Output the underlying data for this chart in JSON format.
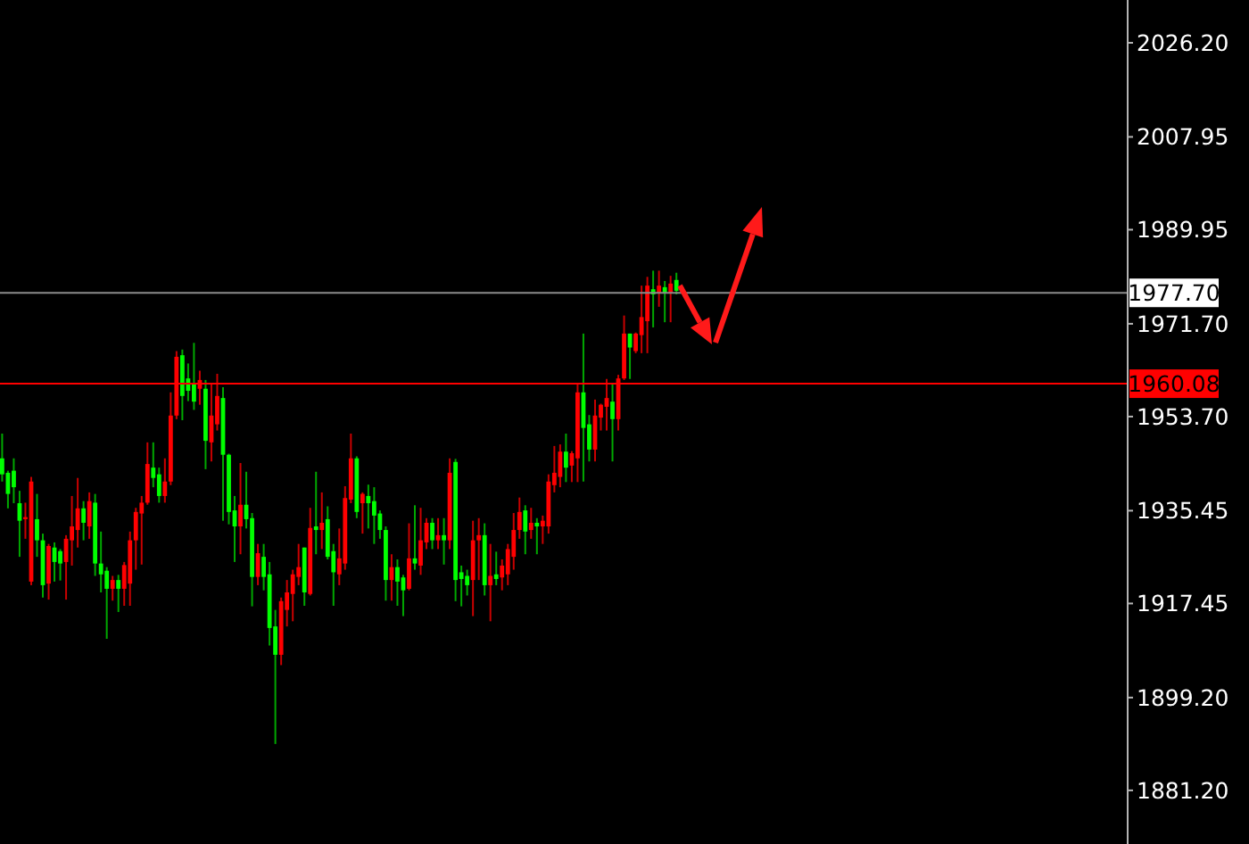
{
  "chart_data": {
    "type": "candlestick",
    "categories": [
      null,
      null,
      null,
      null,
      null,
      null,
      null,
      null,
      null,
      null,
      null,
      null,
      null,
      null,
      null,
      null,
      null,
      null,
      null,
      null,
      null,
      null,
      null,
      null,
      null,
      null,
      null,
      null,
      null,
      null,
      null,
      null,
      null,
      null,
      null,
      null,
      null,
      null,
      null,
      null,
      null,
      null,
      null,
      null,
      null,
      null,
      null,
      null,
      null,
      null,
      null,
      null,
      null,
      null,
      null,
      null,
      null,
      null,
      null,
      null,
      null,
      null,
      null,
      null,
      null,
      null,
      null,
      null,
      null,
      null,
      null,
      null,
      null,
      null,
      null,
      null,
      null,
      null,
      null,
      null,
      null,
      null,
      null,
      null,
      null,
      null,
      null,
      null,
      null,
      null,
      null,
      null,
      null,
      null,
      null,
      null,
      null,
      null,
      null,
      null,
      null,
      null,
      null,
      null,
      null,
      null,
      null,
      null,
      null,
      null,
      null,
      null,
      null,
      null,
      null,
      null,
      null,
      null,
      null,
      null,
      null,
      null,
      null,
      null,
      null,
      null,
      null,
      null,
      null,
      null,
      null,
      null,
      null,
      null,
      null,
      null,
      null,
      null,
      null,
      null,
      null,
      null,
      null,
      null,
      null,
      null,
      null,
      null,
      null,
      null,
      null,
      null,
      null,
      null,
      null,
      null,
      null,
      null,
      null,
      null,
      null,
      null,
      null,
      null,
      null,
      null,
      null,
      null,
      null,
      null,
      null,
      null,
      null,
      null,
      null,
      null,
      null,
      null,
      null,
      null,
      null,
      null,
      null,
      null,
      null,
      null,
      null,
      null,
      null,
      null,
      null,
      null,
      null,
      null
    ],
    "ohlc": [
      [
        1945.6,
        1950.4,
        1941.1,
        1942.5
      ],
      [
        1942.8,
        1943.2,
        1935.9,
        1938.7
      ],
      [
        1943.2,
        1945.6,
        1936.9,
        1940.0
      ],
      [
        1936.9,
        1939.3,
        1926.5,
        1933.5
      ],
      [
        1933.8,
        1937.0,
        1930.0,
        1934.2
      ],
      [
        1921.7,
        1942.0,
        1921.0,
        1941.1
      ],
      [
        1933.8,
        1938.7,
        1926.5,
        1929.7
      ],
      [
        1929.7,
        1931.0,
        1918.6,
        1921.0
      ],
      [
        1921.3,
        1929.0,
        1918.2,
        1928.6
      ],
      [
        1928.3,
        1929.3,
        1921.7,
        1925.5
      ],
      [
        1927.6,
        1928.0,
        1921.9,
        1925.2
      ],
      [
        1925.5,
        1930.7,
        1918.2,
        1930.0
      ],
      [
        1929.7,
        1938.3,
        1924.8,
        1932.4
      ],
      [
        1931.7,
        1941.8,
        1928.3,
        1935.9
      ],
      [
        1935.9,
        1937.3,
        1929.7,
        1933.1
      ],
      [
        1932.4,
        1939.0,
        1930.0,
        1937.3
      ],
      [
        1937.0,
        1938.7,
        1922.8,
        1925.2
      ],
      [
        1925.2,
        1931.4,
        1919.6,
        1923.1
      ],
      [
        1923.8,
        1924.5,
        1910.6,
        1920.3
      ],
      [
        1920.3,
        1922.8,
        1918.0,
        1922.0
      ],
      [
        1922.0,
        1923.0,
        1915.8,
        1920.3
      ],
      [
        1920.3,
        1925.5,
        1917.0,
        1924.9
      ],
      [
        1921.3,
        1931.4,
        1917.0,
        1929.7
      ],
      [
        1929.7,
        1936.0,
        1924.0,
        1935.2
      ],
      [
        1934.9,
        1938.3,
        1925.0,
        1937.0
      ],
      [
        1937.0,
        1948.7,
        1936.6,
        1944.5
      ],
      [
        1943.8,
        1948.7,
        1940.0,
        1941.8
      ],
      [
        1942.5,
        1943.8,
        1937.0,
        1938.3
      ],
      [
        1938.3,
        1945.6,
        1937.0,
        1941.1
      ],
      [
        1941.1,
        1958.4,
        1940.4,
        1953.9
      ],
      [
        1953.9,
        1966.4,
        1953.2,
        1965.3
      ],
      [
        1965.6,
        1966.7,
        1953.0,
        1957.7
      ],
      [
        1961.1,
        1964.0,
        1956.7,
        1958.7
      ],
      [
        1960.1,
        1968.0,
        1955.0,
        1956.6
      ],
      [
        1959.1,
        1962.6,
        1956.0,
        1960.8
      ],
      [
        1959.1,
        1960.8,
        1943.5,
        1949.0
      ],
      [
        1948.7,
        1960.0,
        1945.0,
        1953.9
      ],
      [
        1952.2,
        1962.0,
        1951.0,
        1957.7
      ],
      [
        1957.3,
        1959.4,
        1933.5,
        1946.3
      ],
      [
        1946.3,
        1946.5,
        1932.8,
        1935.2
      ],
      [
        1935.5,
        1938.3,
        1925.5,
        1932.4
      ],
      [
        1932.4,
        1944.7,
        1927.0,
        1936.6
      ],
      [
        1936.6,
        1943.0,
        1932.0,
        1933.8
      ],
      [
        1934.0,
        1935.0,
        1916.9,
        1922.6
      ],
      [
        1922.6,
        1929.0,
        1921.0,
        1927.2
      ],
      [
        1926.5,
        1929.0,
        1920.0,
        1922.6
      ],
      [
        1923.1,
        1925.5,
        1909.3,
        1912.7
      ],
      [
        1913.0,
        1916.2,
        1890.2,
        1907.5
      ],
      [
        1907.5,
        1918.6,
        1905.5,
        1917.9
      ],
      [
        1916.2,
        1922.0,
        1913.0,
        1919.6
      ],
      [
        1919.3,
        1924.0,
        1914.0,
        1923.1
      ],
      [
        1922.6,
        1929.0,
        1921.0,
        1924.5
      ],
      [
        1928.3,
        1928.3,
        1917.0,
        1919.6
      ],
      [
        1919.3,
        1936.0,
        1919.0,
        1932.1
      ],
      [
        1932.4,
        1943.0,
        1927.0,
        1931.7
      ],
      [
        1931.7,
        1939.0,
        1928.0,
        1933.1
      ],
      [
        1933.8,
        1936.3,
        1926.0,
        1926.5
      ],
      [
        1927.6,
        1929.0,
        1917.0,
        1923.5
      ],
      [
        1923.1,
        1932.0,
        1921.0,
        1926.2
      ],
      [
        1925.2,
        1940.2,
        1924.0,
        1937.9
      ],
      [
        1937.6,
        1950.4,
        1936.9,
        1945.6
      ],
      [
        1945.6,
        1946.0,
        1934.0,
        1935.2
      ],
      [
        1936.9,
        1939.0,
        1931.0,
        1938.7
      ],
      [
        1938.3,
        1940.5,
        1932.0,
        1936.9
      ],
      [
        1937.3,
        1940.0,
        1929.0,
        1934.5
      ],
      [
        1934.9,
        1935.5,
        1930.0,
        1931.7
      ],
      [
        1931.7,
        1932.4,
        1918.0,
        1922.0
      ],
      [
        1922.0,
        1927.0,
        1918.0,
        1924.5
      ],
      [
        1924.5,
        1926.0,
        1917.0,
        1921.7
      ],
      [
        1922.5,
        1923.0,
        1915.0,
        1920.0
      ],
      [
        1920.3,
        1933.0,
        1920.0,
        1926.2
      ],
      [
        1926.2,
        1936.5,
        1924.0,
        1925.2
      ],
      [
        1924.8,
        1936.0,
        1923.0,
        1929.7
      ],
      [
        1929.3,
        1934.0,
        1928.0,
        1933.1
      ],
      [
        1933.1,
        1934.0,
        1928.0,
        1929.7
      ],
      [
        1929.7,
        1934.0,
        1928.0,
        1930.7
      ],
      [
        1930.7,
        1934.0,
        1925.0,
        1929.7
      ],
      [
        1929.7,
        1945.6,
        1928.0,
        1942.8
      ],
      [
        1944.9,
        1945.5,
        1917.9,
        1922.0
      ],
      [
        1923.5,
        1924.8,
        1916.9,
        1922.2
      ],
      [
        1922.8,
        1924.0,
        1919.0,
        1921.0
      ],
      [
        1922.0,
        1933.5,
        1915.0,
        1929.7
      ],
      [
        1929.7,
        1934.0,
        1922.0,
        1930.7
      ],
      [
        1930.7,
        1933.0,
        1919.0,
        1921.0
      ],
      [
        1921.0,
        1929.0,
        1914.0,
        1922.8
      ],
      [
        1923.1,
        1927.5,
        1921.0,
        1922.2
      ],
      [
        1922.5,
        1926.0,
        1920.0,
        1924.8
      ],
      [
        1923.1,
        1929.0,
        1921.0,
        1928.0
      ],
      [
        1926.5,
        1935.0,
        1924.0,
        1931.7
      ],
      [
        1931.7,
        1938.0,
        1930.0,
        1935.2
      ],
      [
        1935.5,
        1936.5,
        1927.0,
        1931.4
      ],
      [
        1931.7,
        1936.0,
        1930.0,
        1933.1
      ],
      [
        1933.1,
        1934.0,
        1927.0,
        1932.4
      ],
      [
        1932.4,
        1934.5,
        1929.0,
        1933.5
      ],
      [
        1932.4,
        1942.5,
        1931.0,
        1941.1
      ],
      [
        1940.4,
        1948.0,
        1939.0,
        1942.8
      ],
      [
        1942.0,
        1948.3,
        1940.0,
        1946.9
      ],
      [
        1946.9,
        1950.4,
        1941.0,
        1943.8
      ],
      [
        1944.2,
        1947.0,
        1941.0,
        1946.6
      ],
      [
        1945.6,
        1960.0,
        1941.0,
        1958.4
      ],
      [
        1958.4,
        1969.8,
        1941.1,
        1951.5
      ],
      [
        1952.2,
        1954.0,
        1945.0,
        1947.3
      ],
      [
        1947.3,
        1957.0,
        1945.0,
        1953.9
      ],
      [
        1953.5,
        1956.2,
        1951.0,
        1956.0
      ],
      [
        1955.6,
        1961.0,
        1951.0,
        1957.3
      ],
      [
        1956.6,
        1960.0,
        1945.0,
        1953.2
      ],
      [
        1953.2,
        1961.8,
        1951.0,
        1961.1
      ],
      [
        1961.1,
        1973.3,
        1960.8,
        1969.8
      ],
      [
        1969.8,
        1969.8,
        1961.0,
        1967.1
      ],
      [
        1966.4,
        1970.0,
        1966.0,
        1969.8
      ],
      [
        1969.5,
        1979.1,
        1966.0,
        1973.0
      ],
      [
        1972.2,
        1980.8,
        1966.0,
        1979.1
      ],
      [
        1978.4,
        1982.0,
        1971.0,
        1977.4
      ],
      [
        1977.7,
        1982.0,
        1975.0,
        1979.1
      ],
      [
        1978.8,
        1980.0,
        1972.0,
        1977.7
      ],
      [
        1977.7,
        1981.0,
        1972.0,
        1979.5
      ],
      [
        1980.2,
        1981.6,
        1977.4,
        1978.1
      ],
      null,
      null,
      null,
      null,
      null,
      null,
      null,
      null,
      null,
      null,
      null,
      null,
      null,
      null,
      null,
      null,
      null,
      null,
      null,
      null,
      null,
      null,
      null,
      null,
      null,
      null,
      null,
      null,
      null,
      null,
      null,
      null,
      null,
      null,
      null,
      null,
      null,
      null,
      null,
      null,
      null,
      null,
      null,
      null,
      null,
      null,
      null,
      null,
      null,
      null,
      null,
      null,
      null,
      null,
      null,
      null,
      null,
      null,
      null,
      null,
      null,
      null,
      null,
      null,
      null,
      null,
      null,
      null,
      null,
      null,
      null,
      null,
      null,
      null,
      null,
      null,
      null
    ],
    "ylim": [
      1870.8,
      2034.5
    ],
    "yticks": [
      {
        "value": 2026.2,
        "label": "2026.20"
      },
      {
        "value": 2007.95,
        "label": "2007.95"
      },
      {
        "value": 1989.95,
        "label": "1989.95"
      },
      {
        "value": 1971.7,
        "label": "1971.70"
      },
      {
        "value": 1953.7,
        "label": "1953.70"
      },
      {
        "value": 1935.45,
        "label": "1935.45"
      },
      {
        "value": 1917.45,
        "label": "1917.45"
      },
      {
        "value": 1899.2,
        "label": "1899.20"
      },
      {
        "value": 1881.2,
        "label": "1881.20"
      }
    ],
    "ref_lines": [
      {
        "axis": "y",
        "value": 1977.7,
        "label": "1977.70",
        "color": "#8c8c8c"
      },
      {
        "axis": "y",
        "value": 1960.08,
        "label": "1960.08",
        "color": "#ff0000"
      }
    ]
  }
}
